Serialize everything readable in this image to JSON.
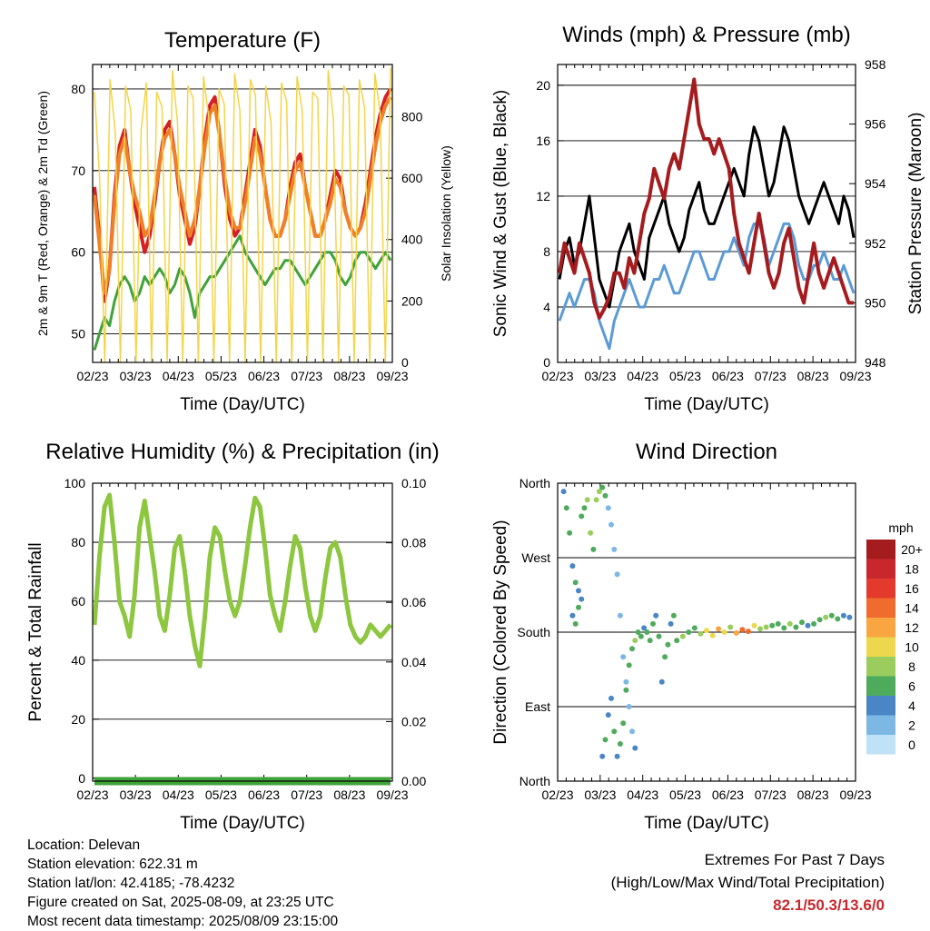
{
  "chart_data": [
    {
      "id": "temperature",
      "type": "line",
      "title": "Temperature (F)",
      "xlabel": "Time (Day/UTC)",
      "ylabel": "2m & 9m T (Red, Orange) & 2m Td (Green)",
      "ylabel_right": "Solar Insolation (Yellow)",
      "x_ticks": [
        "02/23",
        "03/23",
        "04/23",
        "05/23",
        "06/23",
        "07/23",
        "08/23",
        "09/23"
      ],
      "ylim": [
        46.5,
        83
      ],
      "y_ticks": [
        50,
        60,
        70,
        80
      ],
      "y2lim": [
        0,
        970
      ],
      "y2_ticks": [
        0,
        200,
        400,
        600,
        800
      ],
      "grid": "horizontal",
      "series": [
        {
          "color": "#d42025",
          "axis": "left",
          "values": [
            68,
            62,
            54,
            58,
            67,
            73,
            75,
            70,
            66,
            63,
            60,
            62,
            66,
            71,
            75,
            76,
            72,
            67,
            64,
            61,
            63,
            68,
            74,
            78,
            79,
            74,
            68,
            64,
            62,
            63,
            67,
            71,
            75,
            73,
            68,
            64,
            62,
            62,
            64,
            68,
            71,
            72,
            68,
            65,
            62,
            62,
            64,
            67,
            70,
            69,
            65,
            63,
            62,
            63,
            66,
            70,
            74,
            77,
            79,
            80
          ]
        },
        {
          "color": "#f07f29",
          "axis": "left",
          "values": [
            67,
            61,
            55,
            58,
            66,
            72,
            74,
            70,
            67,
            65,
            62,
            63,
            67,
            71,
            74,
            75,
            72,
            68,
            65,
            62,
            64,
            68,
            73,
            77,
            78,
            74,
            69,
            65,
            63,
            63,
            66,
            70,
            74,
            72,
            68,
            64,
            62,
            62,
            64,
            67,
            70,
            71,
            68,
            65,
            62,
            62,
            64,
            66,
            69,
            68,
            65,
            63,
            62,
            63,
            65,
            69,
            73,
            76,
            78,
            79
          ]
        },
        {
          "color": "#3fa23a",
          "axis": "left",
          "values": [
            48,
            50,
            52,
            51,
            54,
            56,
            57,
            56,
            54,
            55,
            57,
            56,
            57,
            58,
            57,
            55,
            56,
            58,
            57,
            55,
            52,
            55,
            56,
            57,
            57,
            58,
            59,
            60,
            61,
            62,
            60,
            59,
            58,
            57,
            56,
            57,
            58,
            58,
            59,
            59,
            58,
            57,
            56,
            57,
            58,
            59,
            60,
            60,
            59,
            57,
            56,
            57,
            59,
            60,
            60,
            59,
            58,
            59,
            60,
            59
          ]
        },
        {
          "color": "#f3d449",
          "axis": "right",
          "values": [
            880,
            600,
            0,
            920,
            750,
            0,
            900,
            820,
            0,
            760,
            910,
            0,
            880,
            830,
            0,
            950,
            780,
            0,
            900,
            860,
            0,
            930,
            800,
            0,
            890,
            840,
            0,
            940,
            820,
            0,
            920,
            870,
            0,
            900,
            780,
            0,
            910,
            850,
            0,
            930,
            820,
            0,
            880,
            860,
            0,
            950,
            790,
            0,
            900,
            870,
            0,
            920,
            830,
            0,
            940,
            810,
            0,
            960
          ]
        }
      ]
    },
    {
      "id": "winds",
      "type": "line",
      "title": "Winds (mph) & Pressure (mb)",
      "xlabel": "Time (Day/UTC)",
      "ylabel": "Sonic Wind & Gust (Blue, Black)",
      "ylabel_right": "Station Pressure (Maroon)",
      "x_ticks": [
        "02/23",
        "03/23",
        "04/23",
        "05/23",
        "06/23",
        "07/23",
        "08/23",
        "09/23"
      ],
      "ylim": [
        0,
        21.5
      ],
      "y_ticks": [
        0,
        4,
        8,
        12,
        16,
        20
      ],
      "y2lim": [
        948,
        958
      ],
      "y2_ticks": [
        948,
        950,
        952,
        954,
        956,
        958
      ],
      "grid": "horizontal",
      "series": [
        {
          "color": "#000000",
          "axis": "left",
          "values": [
            6,
            8,
            9,
            7,
            8,
            10,
            12,
            9,
            6,
            5,
            4,
            6,
            8,
            9,
            10,
            8,
            7,
            6,
            9,
            10,
            11,
            12,
            10,
            9,
            8,
            9,
            11,
            12,
            13,
            11,
            10,
            10,
            11,
            12,
            13,
            14,
            13,
            12,
            15,
            17,
            16,
            14,
            12,
            13,
            15,
            17,
            16,
            14,
            12,
            11,
            10,
            11,
            12,
            13,
            12,
            11,
            10,
            12,
            11,
            9
          ]
        },
        {
          "color": "#5b9bd5",
          "axis": "left",
          "values": [
            3,
            4,
            5,
            4,
            5,
            6,
            6,
            5,
            3,
            2,
            1,
            3,
            4,
            5,
            6,
            5,
            4,
            4,
            5,
            6,
            6,
            7,
            6,
            5,
            5,
            6,
            7,
            8,
            8,
            7,
            6,
            6,
            7,
            8,
            8,
            9,
            8,
            7,
            9,
            10,
            10,
            9,
            7,
            8,
            9,
            10,
            10,
            9,
            7,
            6,
            6,
            7,
            7,
            8,
            7,
            6,
            6,
            7,
            6,
            5
          ]
        },
        {
          "color": "#a51c1f",
          "axis": "right",
          "values": [
            951,
            952,
            951.5,
            951,
            952,
            951.5,
            951,
            950,
            949.5,
            949.8,
            950.2,
            951,
            951,
            950.5,
            951.5,
            951,
            952,
            953,
            953.5,
            954.5,
            954,
            953.5,
            954.5,
            955,
            954.5,
            955.5,
            956.5,
            957.5,
            956,
            955.5,
            955.5,
            955,
            955.5,
            955,
            954.5,
            953,
            952,
            951.5,
            951,
            952,
            953,
            952,
            951,
            950.5,
            951,
            952,
            952.5,
            951.5,
            950.5,
            950,
            951,
            952,
            951,
            950.5,
            951,
            951.5,
            951,
            950.5,
            950,
            950
          ]
        }
      ]
    },
    {
      "id": "humidity",
      "type": "line",
      "title": "Relative Humidity (%) & Precipitation (in)",
      "xlabel": "Time (Day/UTC)",
      "ylabel": "Percent & Total Rainfall",
      "x_ticks": [
        "02/23",
        "03/23",
        "04/23",
        "05/23",
        "06/23",
        "07/23",
        "08/23",
        "09/23"
      ],
      "ylim": [
        -1,
        100
      ],
      "y_ticks": [
        0,
        20,
        40,
        60,
        80,
        100
      ],
      "y2lim": [
        0,
        0.1
      ],
      "y2_ticks": [
        "0.00",
        "0.02",
        "0.04",
        "0.06",
        "0.08",
        "0.10"
      ],
      "grid": "horizontal",
      "series": [
        {
          "color": "#8dc63f",
          "axis": "left",
          "values": [
            52,
            75,
            92,
            96,
            80,
            60,
            55,
            48,
            62,
            85,
            94,
            82,
            70,
            55,
            50,
            62,
            78,
            82,
            70,
            55,
            45,
            38,
            55,
            75,
            85,
            82,
            70,
            60,
            55,
            60,
            72,
            85,
            95,
            92,
            78,
            62,
            55,
            50,
            60,
            72,
            82,
            78,
            65,
            55,
            50,
            55,
            68,
            78,
            80,
            75,
            62,
            52,
            48,
            46,
            48,
            52,
            50,
            48,
            50,
            52
          ]
        },
        {
          "color": "#3fa23a",
          "axis": "right",
          "values": [
            0,
            0,
            0,
            0,
            0,
            0,
            0,
            0,
            0,
            0,
            0,
            0,
            0,
            0,
            0,
            0,
            0,
            0,
            0,
            0,
            0,
            0,
            0,
            0,
            0,
            0,
            0,
            0,
            0,
            0
          ]
        }
      ]
    },
    {
      "id": "direction",
      "type": "scatter",
      "title": "Wind Direction",
      "xlabel": "Time (Day/UTC)",
      "ylabel": "Direction (Colored By Speed)",
      "x_ticks": [
        "02/23",
        "03/23",
        "04/23",
        "05/23",
        "06/23",
        "07/23",
        "08/23",
        "09/23"
      ],
      "y_ticks": [
        "North",
        "East",
        "South",
        "West",
        "North"
      ],
      "ylim": [
        0,
        360
      ],
      "grid": "horizontal",
      "colorbar": {
        "title": "mph",
        "labels": [
          "20+",
          "18",
          "16",
          "14",
          "12",
          "10",
          "8",
          "6",
          "4",
          "2",
          "0"
        ],
        "colors": [
          "#a51c1f",
          "#c8282d",
          "#e43a2e",
          "#f06b2e",
          "#f9a541",
          "#ecd74f",
          "#9acc5e",
          "#4fab5c",
          "#4a86c6",
          "#7db8e4",
          "#bfe2f6"
        ]
      },
      "points": [
        [
          0.02,
          350,
          4
        ],
        [
          0.03,
          330,
          6
        ],
        [
          0.04,
          300,
          5
        ],
        [
          0.05,
          260,
          4
        ],
        [
          0.06,
          240,
          6
        ],
        [
          0.07,
          230,
          4
        ],
        [
          0.08,
          320,
          5
        ],
        [
          0.09,
          330,
          6
        ],
        [
          0.1,
          340,
          7
        ],
        [
          0.11,
          300,
          8
        ],
        [
          0.12,
          280,
          6
        ],
        [
          0.13,
          340,
          7
        ],
        [
          0.14,
          350,
          8
        ],
        [
          0.15,
          355,
          5
        ],
        [
          0.16,
          345,
          6
        ],
        [
          0.05,
          200,
          4
        ],
        [
          0.06,
          190,
          5
        ],
        [
          0.07,
          210,
          6
        ],
        [
          0.08,
          220,
          4
        ],
        [
          0.17,
          330,
          2
        ],
        [
          0.18,
          310,
          1
        ],
        [
          0.19,
          280,
          2
        ],
        [
          0.2,
          250,
          1
        ],
        [
          0.21,
          200,
          2
        ],
        [
          0.22,
          150,
          1
        ],
        [
          0.23,
          120,
          2
        ],
        [
          0.24,
          90,
          1
        ],
        [
          0.25,
          60,
          2
        ],
        [
          0.26,
          40,
          3
        ],
        [
          0.15,
          30,
          4
        ],
        [
          0.16,
          50,
          5
        ],
        [
          0.17,
          80,
          3
        ],
        [
          0.18,
          100,
          4
        ],
        [
          0.19,
          60,
          5
        ],
        [
          0.2,
          30,
          4
        ],
        [
          0.21,
          45,
          6
        ],
        [
          0.22,
          70,
          5
        ],
        [
          0.23,
          110,
          6
        ],
        [
          0.24,
          140,
          5
        ],
        [
          0.25,
          160,
          6
        ],
        [
          0.26,
          170,
          7
        ],
        [
          0.27,
          180,
          6
        ],
        [
          0.28,
          175,
          5
        ],
        [
          0.29,
          185,
          4
        ],
        [
          0.3,
          180,
          6
        ],
        [
          0.31,
          170,
          5
        ],
        [
          0.32,
          190,
          6
        ],
        [
          0.33,
          200,
          4
        ],
        [
          0.34,
          175,
          5
        ],
        [
          0.35,
          120,
          4
        ],
        [
          0.36,
          150,
          5
        ],
        [
          0.37,
          165,
          6
        ],
        [
          0.38,
          190,
          4
        ],
        [
          0.39,
          200,
          5
        ],
        [
          0.4,
          170,
          6
        ],
        [
          0.42,
          175,
          7
        ],
        [
          0.44,
          180,
          5
        ],
        [
          0.46,
          185,
          6
        ],
        [
          0.48,
          178,
          8
        ],
        [
          0.5,
          182,
          9
        ],
        [
          0.52,
          176,
          10
        ],
        [
          0.54,
          184,
          11
        ],
        [
          0.56,
          180,
          9
        ],
        [
          0.58,
          186,
          8
        ],
        [
          0.6,
          179,
          12
        ],
        [
          0.62,
          183,
          13
        ],
        [
          0.64,
          181,
          14
        ],
        [
          0.66,
          188,
          10
        ],
        [
          0.68,
          184,
          8
        ],
        [
          0.7,
          186,
          7
        ],
        [
          0.72,
          188,
          6
        ],
        [
          0.74,
          190,
          5
        ],
        [
          0.76,
          185,
          6
        ],
        [
          0.78,
          190,
          7
        ],
        [
          0.8,
          186,
          5
        ],
        [
          0.82,
          192,
          6
        ],
        [
          0.84,
          188,
          4
        ],
        [
          0.86,
          190,
          5
        ],
        [
          0.88,
          195,
          6
        ],
        [
          0.9,
          198,
          7
        ],
        [
          0.92,
          200,
          5
        ],
        [
          0.94,
          196,
          6
        ],
        [
          0.96,
          200,
          4
        ],
        [
          0.98,
          198,
          3
        ]
      ]
    }
  ],
  "info": {
    "location": "Location: Delevan",
    "elevation": "Station elevation: 622.31 m",
    "latlon": "Station lat/lon: 42.4185; -78.4232",
    "created": "Figure created on Sat, 2025-08-09, at 23:25 UTC",
    "recent": "Most recent data timestamp: 2025/08/09 23:15:00"
  },
  "extremes": {
    "title": "Extremes For Past 7 Days",
    "subtitle": "(High/Low/Max Wind/Total Precipitation)",
    "values": "82.1/50.3/13.6/0"
  }
}
